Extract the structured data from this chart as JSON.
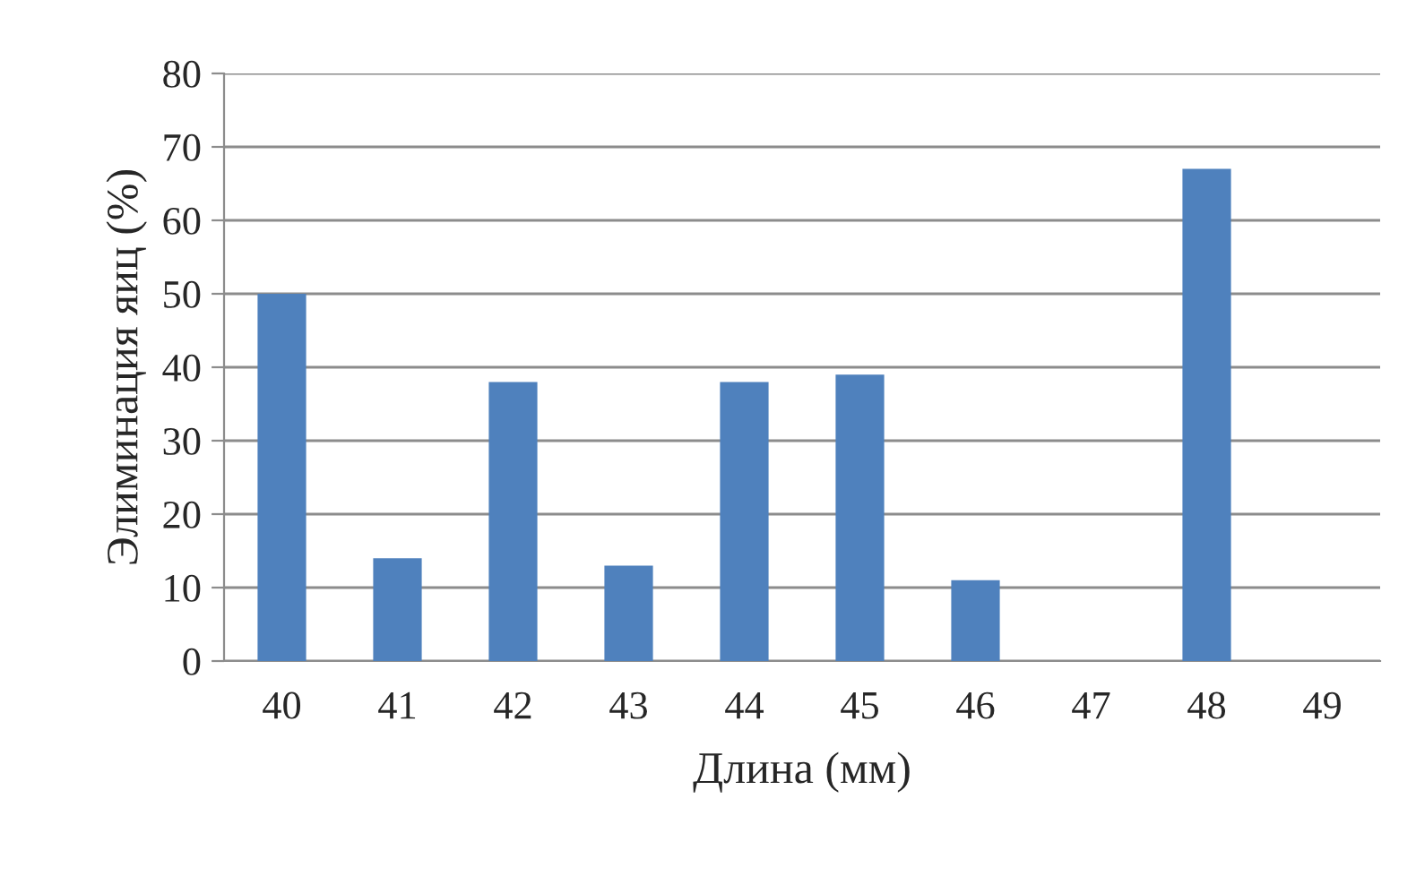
{
  "chart_data": {
    "type": "bar",
    "xlabel": "Длина (мм)",
    "ylabel": "Элиминация яиц (%)",
    "categories": [
      "40",
      "41",
      "42",
      "43",
      "44",
      "45",
      "46",
      "47",
      "48",
      "49"
    ],
    "values": [
      50,
      14,
      38,
      13,
      38,
      39,
      11,
      0,
      67,
      0
    ],
    "color": "#4f81bd",
    "ylim": [
      0,
      80
    ],
    "yticks": [
      0,
      10,
      20,
      30,
      40,
      50,
      60,
      70,
      80
    ],
    "grid": "y",
    "legend": false
  }
}
